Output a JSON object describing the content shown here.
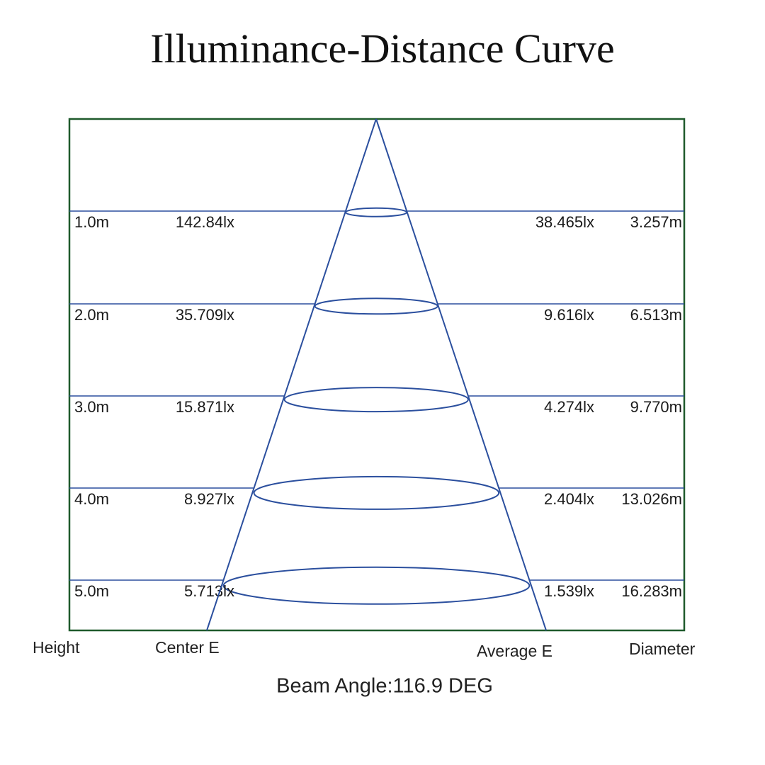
{
  "title": "Illuminance-Distance Curve",
  "rows": [
    {
      "height": "1.0m",
      "center": "142.84lx",
      "average": "38.465lx",
      "diameter": "3.257m"
    },
    {
      "height": "2.0m",
      "center": "35.709lx",
      "average": "9.616lx",
      "diameter": "6.513m"
    },
    {
      "height": "3.0m",
      "center": "15.871lx",
      "average": "4.274lx",
      "diameter": "9.770m"
    },
    {
      "height": "4.0m",
      "center": "8.927lx",
      "average": "2.404lx",
      "diameter": "13.026m"
    },
    {
      "height": "5.0m",
      "center": "5.713lx",
      "average": "1.539lx",
      "diameter": "16.283m"
    }
  ],
  "columns": {
    "height": "Height",
    "center": "Center E",
    "average": "Average E",
    "diameter": "Diameter"
  },
  "beam_angle": "Beam Angle:116.9 DEG"
}
